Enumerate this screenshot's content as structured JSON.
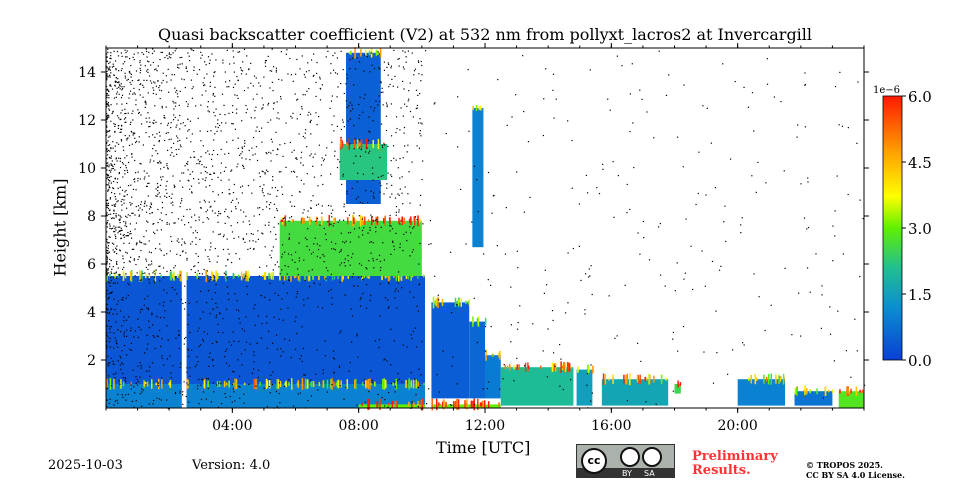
{
  "chart_data": {
    "type": "heatmap",
    "title": "Quasi backscatter coefficient (V2) at 532 nm from pollyxt_lacros2 at Invercargill",
    "xlabel": "Time [UTC]",
    "ylabel": "Height [km]",
    "xlim_hours": [
      0,
      24
    ],
    "ylim_km": [
      0,
      15
    ],
    "x_ticks": [
      {
        "v": 4,
        "label": "04:00"
      },
      {
        "v": 8,
        "label": "08:00"
      },
      {
        "v": 12,
        "label": "12:00"
      },
      {
        "v": 16,
        "label": "16:00"
      },
      {
        "v": 20,
        "label": "20:00"
      }
    ],
    "y_ticks": [
      {
        "v": 2,
        "label": "2"
      },
      {
        "v": 4,
        "label": "4"
      },
      {
        "v": 6,
        "label": "6"
      },
      {
        "v": 8,
        "label": "8"
      },
      {
        "v": 10,
        "label": "10"
      },
      {
        "v": 12,
        "label": "12"
      },
      {
        "v": 14,
        "label": "14"
      }
    ],
    "colorbar": {
      "range": [
        0,
        6
      ],
      "exponent_label": "1e−6",
      "ticks": [
        {
          "v": 0,
          "label": "0.0"
        },
        {
          "v": 1.5,
          "label": "1.5"
        },
        {
          "v": 3,
          "label": "3.0"
        },
        {
          "v": 4.5,
          "label": "4.5"
        },
        {
          "v": 6,
          "label": "6.0"
        }
      ],
      "colormap": "jet"
    },
    "features": [
      {
        "t": [
          0,
          10.1
        ],
        "h": [
          1.0,
          5.5
        ],
        "value": 0.35
      },
      {
        "t": [
          0,
          10.1
        ],
        "h": [
          0,
          1.0
        ],
        "value": 1.0
      },
      {
        "t": [
          10.3,
          11.5
        ],
        "h": [
          0.4,
          4.4
        ],
        "value": 0.45
      },
      {
        "t": [
          11.5,
          12.0
        ],
        "h": [
          0.4,
          3.6
        ],
        "value": 0.6
      },
      {
        "t": [
          12.0,
          12.5
        ],
        "h": [
          0.4,
          2.2
        ],
        "value": 0.9
      },
      {
        "t": [
          7.6,
          8.7
        ],
        "h": [
          8.5,
          14.8
        ],
        "value": 0.5
      },
      {
        "t": [
          7.4,
          8.9
        ],
        "h": [
          9.5,
          11.0
        ],
        "value": 2.2
      },
      {
        "t": [
          11.6,
          11.95
        ],
        "h": [
          6.7,
          12.5
        ],
        "value": 1.0
      },
      {
        "t": [
          5.5,
          10.0
        ],
        "h": [
          5.5,
          7.8
        ],
        "value": 2.6
      },
      {
        "t": [
          12.5,
          14.8
        ],
        "h": [
          0.1,
          1.7
        ],
        "value": 2.0
      },
      {
        "t": [
          14.9,
          15.4
        ],
        "h": [
          0.1,
          1.6
        ],
        "value": 1.5
      },
      {
        "t": [
          15.7,
          17.8
        ],
        "h": [
          0.1,
          1.2
        ],
        "value": 1.6
      },
      {
        "t": [
          8.0,
          12.5
        ],
        "h": [
          0,
          0.15
        ],
        "value": 3.0
      },
      {
        "t": [
          18.0,
          18.2
        ],
        "h": [
          0.6,
          1.0
        ],
        "value": 2.5
      },
      {
        "t": [
          20.0,
          21.5
        ],
        "h": [
          0.1,
          1.2
        ],
        "value": 1.0
      },
      {
        "t": [
          21.8,
          23.0
        ],
        "h": [
          0.1,
          0.7
        ],
        "value": 0.8
      },
      {
        "t": [
          23.2,
          24.0
        ],
        "h": [
          0,
          0.7
        ],
        "value": 2.8
      }
    ],
    "data_gaps_hours": [
      [
        2.4,
        2.55
      ],
      [
        10.1,
        10.3
      ]
    ]
  },
  "footer": {
    "date": "2025-10-03",
    "version": "Version: 4.0",
    "preliminary_line1": "Preliminary",
    "preliminary_line2": "Results.",
    "copyright_line1": "© TROPOS 2025.",
    "copyright_line2": "CC BY SA 4.0 License.",
    "license_badge": {
      "by": "BY",
      "sa": "SA",
      "cc": "cc"
    }
  },
  "colors": {
    "preliminary": "#ff3333",
    "badge_bg": "#aab2ab",
    "badge_strip": "#333333"
  }
}
